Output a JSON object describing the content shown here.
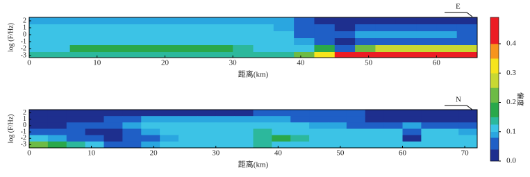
{
  "chart_data": [
    {
      "type": "heatmap",
      "direction_label": "E",
      "ylabel": "log (F/Hz)",
      "xlabel": "距离(km)",
      "xlim": [
        0,
        66
      ],
      "xticks": [
        0,
        10,
        20,
        30,
        40,
        50,
        60
      ],
      "ylim": [
        -3.3,
        2.5
      ],
      "yticks": [
        2,
        1,
        0,
        -1,
        -2,
        -3
      ],
      "x": [
        1.5,
        4.5,
        7.5,
        10.5,
        13.5,
        16.5,
        19.5,
        22.5,
        25.5,
        28.5,
        31.5,
        34.5,
        37.5,
        40.5,
        43.5,
        46.5,
        49.5,
        52.5,
        55.5,
        58.5,
        61.5,
        64.5
      ],
      "y": [
        2,
        1,
        0,
        -1,
        -2,
        -3
      ],
      "z": [
        [
          0.09,
          0.09,
          0.09,
          0.09,
          0.09,
          0.09,
          0.09,
          0.09,
          0.09,
          0.09,
          0.09,
          0.09,
          0.08,
          0.06,
          0.03,
          0.02,
          0.02,
          0.02,
          0.02,
          0.02,
          0.02,
          0.02
        ],
        [
          0.1,
          0.1,
          0.1,
          0.1,
          0.1,
          0.1,
          0.1,
          0.1,
          0.1,
          0.1,
          0.1,
          0.1,
          0.09,
          0.06,
          0.04,
          0.03,
          0.06,
          0.06,
          0.06,
          0.06,
          0.06,
          0.04
        ],
        [
          0.11,
          0.11,
          0.11,
          0.11,
          0.11,
          0.11,
          0.11,
          0.11,
          0.11,
          0.11,
          0.11,
          0.11,
          0.1,
          0.07,
          0.05,
          0.04,
          0.08,
          0.08,
          0.08,
          0.08,
          0.08,
          0.05
        ],
        [
          0.11,
          0.11,
          0.12,
          0.12,
          0.12,
          0.12,
          0.12,
          0.12,
          0.12,
          0.12,
          0.12,
          0.11,
          0.1,
          0.09,
          0.06,
          0.03,
          0.07,
          0.07,
          0.07,
          0.07,
          0.07,
          0.05
        ],
        [
          0.12,
          0.12,
          0.17,
          0.17,
          0.17,
          0.17,
          0.17,
          0.17,
          0.16,
          0.16,
          0.13,
          0.12,
          0.11,
          0.12,
          0.15,
          0.05,
          0.2,
          0.25,
          0.25,
          0.25,
          0.25,
          0.25
        ],
        [
          0.13,
          0.13,
          0.13,
          0.13,
          0.13,
          0.13,
          0.13,
          0.13,
          0.13,
          0.13,
          0.13,
          0.13,
          0.14,
          0.22,
          0.33,
          0.4,
          0.45,
          0.45,
          0.45,
          0.45,
          0.45,
          0.45
        ]
      ]
    },
    {
      "type": "heatmap",
      "direction_label": "N",
      "ylabel": "log (F/Hz)",
      "xlabel": "距离(km)",
      "xlim": [
        0,
        72
      ],
      "xticks": [
        0,
        10,
        20,
        30,
        40,
        50,
        60,
        70
      ],
      "ylim": [
        -3.5,
        2.5
      ],
      "yticks": [
        2,
        1,
        0,
        -1,
        -2,
        -3
      ],
      "x": [
        1.5,
        4.5,
        7.5,
        10.5,
        13.5,
        16.5,
        19.5,
        22.5,
        25.5,
        28.5,
        31.5,
        34.5,
        37.5,
        40.5,
        43.5,
        46.5,
        49.5,
        52.5,
        55.5,
        58.5,
        61.5,
        64.5,
        67.5,
        70.5
      ],
      "y": [
        2,
        1,
        0,
        -1,
        -2,
        -3
      ],
      "z": [
        [
          0.02,
          0.02,
          0.02,
          0.02,
          0.02,
          0.02,
          0.02,
          0.02,
          0.02,
          0.02,
          0.02,
          0.02,
          0.04,
          0.04,
          0.04,
          0.04,
          0.04,
          0.04,
          0.02,
          0.02,
          0.02,
          0.02,
          0.02,
          0.02
        ],
        [
          0.02,
          0.02,
          0.02,
          0.03,
          0.05,
          0.07,
          0.08,
          0.09,
          0.09,
          0.09,
          0.09,
          0.09,
          0.09,
          0.08,
          0.07,
          0.06,
          0.05,
          0.04,
          0.03,
          0.03,
          0.03,
          0.03,
          0.03,
          0.03
        ],
        [
          0.03,
          0.03,
          0.04,
          0.05,
          0.07,
          0.09,
          0.1,
          0.1,
          0.1,
          0.1,
          0.1,
          0.1,
          0.1,
          0.1,
          0.1,
          0.09,
          0.08,
          0.07,
          0.06,
          0.05,
          0.08,
          0.05,
          0.05,
          0.05
        ],
        [
          0.05,
          0.05,
          0.04,
          0.03,
          0.03,
          0.06,
          0.09,
          0.1,
          0.1,
          0.1,
          0.11,
          0.12,
          0.13,
          0.12,
          0.11,
          0.1,
          0.1,
          0.1,
          0.1,
          0.1,
          0.05,
          0.1,
          0.1,
          0.09
        ],
        [
          0.1,
          0.08,
          0.06,
          0.05,
          0.03,
          0.04,
          0.07,
          0.09,
          0.1,
          0.11,
          0.12,
          0.12,
          0.13,
          0.15,
          0.14,
          0.12,
          0.11,
          0.11,
          0.11,
          0.11,
          0.03,
          0.11,
          0.11,
          0.1
        ],
        [
          0.22,
          0.18,
          0.14,
          0.1,
          0.06,
          0.05,
          0.08,
          0.1,
          0.11,
          0.11,
          0.12,
          0.12,
          0.13,
          0.12,
          0.12,
          0.12,
          0.12,
          0.11,
          0.11,
          0.11,
          0.1,
          0.11,
          0.11,
          0.11
        ]
      ]
    }
  ],
  "colorbar": {
    "label": "偏度",
    "clim": [
      0,
      0.49
    ],
    "ticks": [
      {
        "value": 0,
        "label": "0.0"
      },
      0.1,
      0.2,
      0.3,
      0.4
    ],
    "levels": [
      0,
      0.04,
      0.08,
      0.1,
      0.125,
      0.15,
      0.2,
      0.25,
      0.3,
      0.35,
      0.4
    ],
    "colors": [
      "#1e2f8e",
      "#1f5fc6",
      "#2aa6e0",
      "#3cc3e6",
      "#2cb89c",
      "#2aa84a",
      "#6dbb45",
      "#c8d832",
      "#f6e41c",
      "#f7941d",
      "#ec1c24"
    ]
  }
}
